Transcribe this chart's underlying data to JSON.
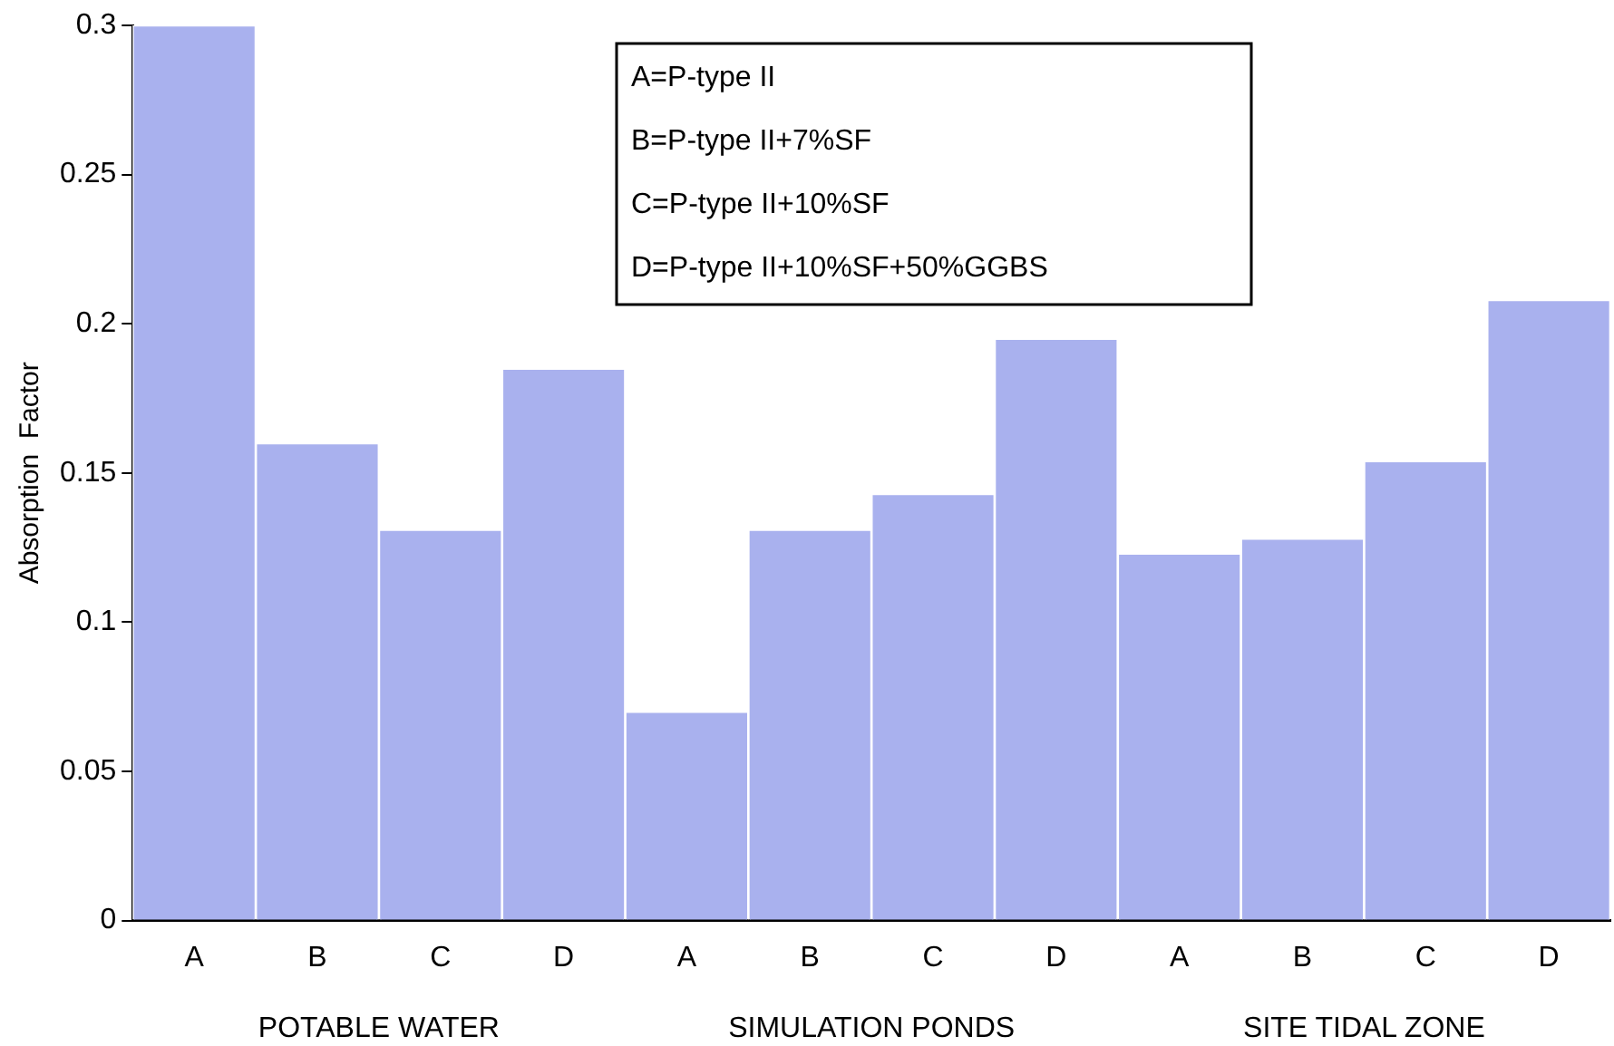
{
  "chart_data": {
    "type": "bar",
    "ylabel": "Absorption  Factor",
    "categories": [
      "A",
      "B",
      "C",
      "D",
      "A",
      "B",
      "C",
      "D",
      "A",
      "B",
      "C",
      "D"
    ],
    "values": [
      0.3,
      0.16,
      0.131,
      0.185,
      0.07,
      0.131,
      0.143,
      0.195,
      0.123,
      0.128,
      0.154,
      0.208
    ],
    "color": "#a9b1ee",
    "ylim": [
      0,
      0.3
    ],
    "yticks": [
      0,
      0.05,
      0.1,
      0.15,
      0.2,
      0.25,
      0.3
    ],
    "grid": false,
    "legend": false,
    "annotations": [
      "A=P-type II",
      "B=P-type II+7%SF",
      "C=P-type II+10%SF",
      "D=P-type II+10%SF+50%GGBS",
      "POTABLE WATER",
      "SIMULATION PONDS",
      "SITE TIDAL ZONE"
    ]
  }
}
